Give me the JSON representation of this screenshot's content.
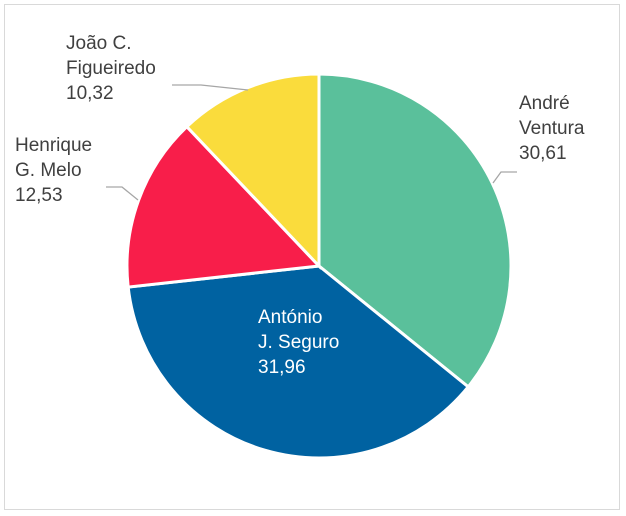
{
  "chart_data": {
    "type": "pie",
    "title": "",
    "slices": [
      {
        "label": "André Ventura",
        "label_lines": [
          "André",
          "Ventura"
        ],
        "value": 30.61,
        "value_text": "30,61",
        "color": "#5AC09B"
      },
      {
        "label": "António J. Seguro",
        "label_lines": [
          "António",
          "J. Seguro"
        ],
        "value": 31.96,
        "value_text": "31,96",
        "color": "#0062A1"
      },
      {
        "label": "Henrique G. Melo",
        "label_lines": [
          "Henrique",
          "G. Melo"
        ],
        "value": 12.53,
        "value_text": "12,53",
        "color": "#F81E4A"
      },
      {
        "label": "João C. Figueiredo",
        "label_lines": [
          "João C.",
          "Figueiredo"
        ],
        "value": 10.32,
        "value_text": "10,32",
        "color": "#FADC3C"
      }
    ],
    "legend": "none",
    "data_labels": "category name and value"
  }
}
